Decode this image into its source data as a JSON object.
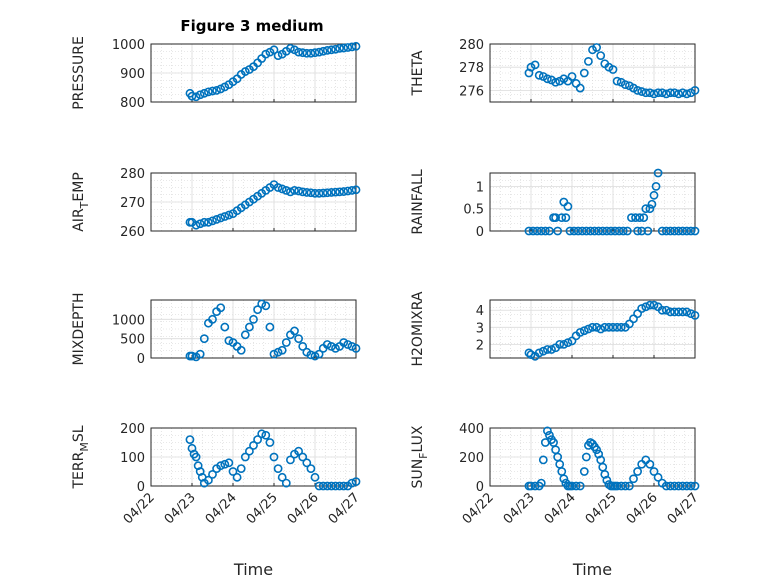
{
  "figure_title": "Figure 3 medium",
  "x_axis": {
    "label": "Time",
    "ticks": [
      "04/22",
      "04/23",
      "04/24",
      "04/25",
      "04/26",
      "04/27"
    ],
    "range_days": [
      0,
      5
    ]
  },
  "colors": {
    "marker": "#0072BD",
    "grid": "#dcdcdc",
    "axis": "#262626"
  },
  "chart_data": [
    {
      "type": "scatter",
      "id": "pressure",
      "ylabel": "PRESSURE",
      "ylim": [
        800,
        1000
      ],
      "yticks": [
        800,
        900,
        1000
      ],
      "ytick_labels": [
        "800",
        "900",
        "1000"
      ],
      "title": "Figure 3 medium",
      "grid": true,
      "x": [
        0.95,
        1.0,
        1.1,
        1.2,
        1.3,
        1.4,
        1.5,
        1.6,
        1.7,
        1.8,
        1.9,
        2.0,
        2.1,
        2.2,
        2.3,
        2.4,
        2.5,
        2.6,
        2.7,
        2.8,
        2.9,
        3.0,
        3.1,
        3.2,
        3.3,
        3.4,
        3.5,
        3.6,
        3.7,
        3.8,
        3.9,
        4.0,
        4.1,
        4.2,
        4.3,
        4.4,
        4.5,
        4.6,
        4.7,
        4.8,
        4.9,
        5.0
      ],
      "y": [
        830,
        820,
        818,
        825,
        830,
        835,
        838,
        840,
        845,
        852,
        860,
        870,
        880,
        895,
        905,
        912,
        922,
        935,
        950,
        965,
        972,
        980,
        960,
        965,
        975,
        985,
        980,
        972,
        970,
        968,
        968,
        970,
        972,
        975,
        978,
        980,
        982,
        985,
        986,
        988,
        990,
        992
      ]
    },
    {
      "type": "scatter",
      "id": "theta",
      "ylabel": "THETA",
      "ylim": [
        275,
        280
      ],
      "yticks": [
        276,
        278,
        280
      ],
      "ytick_labels": [
        "276",
        "278",
        "280"
      ],
      "grid": true,
      "x": [
        0.95,
        1.0,
        1.1,
        1.2,
        1.3,
        1.4,
        1.5,
        1.6,
        1.7,
        1.8,
        1.9,
        2.0,
        2.1,
        2.2,
        2.3,
        2.4,
        2.5,
        2.6,
        2.7,
        2.8,
        2.9,
        3.0,
        3.1,
        3.2,
        3.3,
        3.4,
        3.5,
        3.6,
        3.7,
        3.8,
        3.9,
        4.0,
        4.1,
        4.2,
        4.3,
        4.4,
        4.5,
        4.6,
        4.7,
        4.8,
        4.9,
        5.0
      ],
      "y": [
        277.5,
        278.0,
        278.2,
        277.3,
        277.2,
        277.0,
        276.9,
        276.7,
        276.8,
        277.0,
        276.8,
        277.2,
        276.6,
        276.2,
        277.5,
        278.5,
        279.5,
        279.7,
        279.0,
        278.3,
        278.0,
        277.8,
        276.8,
        276.7,
        276.5,
        276.4,
        276.2,
        276.0,
        275.9,
        275.8,
        275.8,
        275.7,
        275.8,
        275.8,
        275.7,
        275.8,
        275.8,
        275.7,
        275.8,
        275.7,
        275.8,
        276.0
      ]
    },
    {
      "type": "scatter",
      "id": "airtemp",
      "ylabel": "AIR_TEMP",
      "ylim": [
        260,
        280
      ],
      "yticks": [
        260,
        270,
        280
      ],
      "ytick_labels": [
        "260",
        "270",
        "280"
      ],
      "grid": true,
      "x": [
        0.95,
        1.0,
        1.1,
        1.2,
        1.3,
        1.4,
        1.5,
        1.6,
        1.7,
        1.8,
        1.9,
        2.0,
        2.1,
        2.2,
        2.3,
        2.4,
        2.5,
        2.6,
        2.7,
        2.8,
        2.9,
        3.0,
        3.1,
        3.2,
        3.3,
        3.4,
        3.5,
        3.6,
        3.7,
        3.8,
        3.9,
        4.0,
        4.1,
        4.2,
        4.3,
        4.4,
        4.5,
        4.6,
        4.7,
        4.8,
        4.9,
        5.0
      ],
      "y": [
        263,
        263,
        262,
        262.5,
        263,
        263,
        263.5,
        264,
        264.5,
        265,
        265.5,
        266,
        267,
        268,
        269,
        270,
        271,
        272,
        273,
        274,
        275,
        276,
        275,
        274.5,
        274,
        273.5,
        274,
        273.8,
        273.5,
        273.3,
        273.2,
        273.0,
        273.0,
        273.1,
        273.2,
        273.3,
        273.4,
        273.5,
        273.6,
        273.8,
        274.0,
        274.2
      ]
    },
    {
      "type": "scatter",
      "id": "rainfall",
      "ylabel": "RAINFALL",
      "ylim": [
        0,
        1.3
      ],
      "yticks": [
        0,
        0.5,
        1
      ],
      "ytick_labels": [
        "0",
        "0.5",
        "1"
      ],
      "grid": true,
      "x": [
        0.95,
        1.05,
        1.15,
        1.25,
        1.35,
        1.45,
        1.55,
        1.6,
        1.65,
        1.75,
        1.8,
        1.85,
        1.9,
        1.95,
        2.05,
        2.15,
        2.25,
        2.35,
        2.45,
        2.55,
        2.65,
        2.75,
        2.85,
        2.95,
        3.05,
        3.15,
        3.25,
        3.35,
        3.45,
        3.55,
        3.6,
        3.65,
        3.7,
        3.75,
        3.8,
        3.85,
        3.9,
        3.95,
        4.0,
        4.05,
        4.1,
        4.2,
        4.3,
        4.4,
        4.5,
        4.6,
        4.7,
        4.8,
        4.9,
        5.0
      ],
      "y": [
        0,
        0,
        0,
        0,
        0,
        0,
        0.3,
        0.3,
        0,
        0.3,
        0.65,
        0.3,
        0.55,
        0,
        0,
        0,
        0,
        0,
        0,
        0,
        0,
        0,
        0,
        0,
        0,
        0,
        0,
        0,
        0.3,
        0.3,
        0,
        0.3,
        0,
        0.3,
        0.5,
        0,
        0.5,
        0.6,
        0.8,
        1.0,
        1.3,
        0,
        0,
        0,
        0,
        0,
        0,
        0,
        0,
        0
      ]
    },
    {
      "type": "scatter",
      "id": "mixdepth",
      "ylabel": "MIXDEPTH",
      "ylim": [
        0,
        1500
      ],
      "yticks": [
        0,
        500,
        1000
      ],
      "ytick_labels": [
        "0",
        "500",
        "1000"
      ],
      "grid": true,
      "x": [
        0.95,
        1.0,
        1.1,
        1.2,
        1.3,
        1.4,
        1.5,
        1.6,
        1.7,
        1.8,
        1.9,
        2.0,
        2.1,
        2.2,
        2.3,
        2.4,
        2.5,
        2.6,
        2.7,
        2.8,
        2.9,
        3.0,
        3.1,
        3.2,
        3.3,
        3.4,
        3.5,
        3.6,
        3.7,
        3.8,
        3.9,
        4.0,
        4.1,
        4.2,
        4.3,
        4.4,
        4.5,
        4.6,
        4.7,
        4.8,
        4.9,
        5.0
      ],
      "y": [
        50,
        50,
        30,
        100,
        500,
        900,
        1000,
        1200,
        1300,
        800,
        450,
        400,
        300,
        200,
        600,
        800,
        1000,
        1250,
        1400,
        1350,
        800,
        100,
        150,
        200,
        400,
        600,
        700,
        500,
        300,
        150,
        80,
        50,
        100,
        250,
        350,
        300,
        250,
        300,
        400,
        350,
        300,
        250
      ]
    },
    {
      "type": "scatter",
      "id": "h2omixra",
      "ylabel": "H2OMIXRA",
      "ylim": [
        1.2,
        4.6
      ],
      "yticks": [
        2,
        3,
        4
      ],
      "ytick_labels": [
        "2",
        "3",
        "4"
      ],
      "grid": true,
      "x": [
        0.95,
        1.0,
        1.1,
        1.2,
        1.3,
        1.4,
        1.5,
        1.6,
        1.7,
        1.8,
        1.9,
        2.0,
        2.1,
        2.2,
        2.3,
        2.4,
        2.5,
        2.6,
        2.7,
        2.8,
        2.9,
        3.0,
        3.1,
        3.2,
        3.3,
        3.4,
        3.5,
        3.6,
        3.7,
        3.8,
        3.9,
        4.0,
        4.1,
        4.2,
        4.3,
        4.4,
        4.5,
        4.6,
        4.7,
        4.8,
        4.9,
        5.0
      ],
      "y": [
        1.5,
        1.4,
        1.3,
        1.5,
        1.6,
        1.7,
        1.7,
        1.8,
        2.0,
        2.0,
        2.1,
        2.2,
        2.5,
        2.7,
        2.8,
        2.9,
        3.0,
        3.0,
        2.9,
        3.0,
        3.0,
        3.0,
        3.0,
        3.0,
        3.0,
        3.2,
        3.5,
        3.8,
        4.1,
        4.2,
        4.3,
        4.3,
        4.2,
        4.0,
        4.0,
        3.9,
        3.9,
        3.9,
        3.9,
        3.9,
        3.8,
        3.7
      ]
    },
    {
      "type": "scatter",
      "id": "terrmsl",
      "ylabel": "TERR_MSL",
      "ylim": [
        0,
        200
      ],
      "yticks": [
        0,
        100,
        200
      ],
      "ytick_labels": [
        "0",
        "100",
        "200"
      ],
      "grid": true,
      "x": [
        0.95,
        1.0,
        1.05,
        1.1,
        1.15,
        1.2,
        1.25,
        1.3,
        1.4,
        1.5,
        1.6,
        1.7,
        1.8,
        1.9,
        2.0,
        2.1,
        2.2,
        2.3,
        2.4,
        2.5,
        2.6,
        2.7,
        2.8,
        2.9,
        3.0,
        3.1,
        3.2,
        3.3,
        3.4,
        3.5,
        3.6,
        3.7,
        3.8,
        3.9,
        4.0,
        4.1,
        4.2,
        4.3,
        4.4,
        4.5,
        4.6,
        4.7,
        4.8,
        4.9,
        5.0
      ],
      "y": [
        160,
        130,
        110,
        100,
        70,
        50,
        30,
        10,
        20,
        40,
        60,
        70,
        75,
        80,
        50,
        30,
        60,
        100,
        120,
        140,
        160,
        180,
        175,
        150,
        100,
        60,
        30,
        10,
        90,
        110,
        120,
        100,
        80,
        60,
        30,
        0,
        0,
        0,
        0,
        0,
        0,
        0,
        0,
        10,
        15
      ]
    },
    {
      "type": "scatter",
      "id": "sunflux",
      "ylabel": "SUN_FLUX",
      "ylim": [
        0,
        400
      ],
      "yticks": [
        0,
        200,
        400
      ],
      "ytick_labels": [
        "0",
        "200",
        "400"
      ],
      "grid": true,
      "x": [
        0.95,
        1.0,
        1.1,
        1.2,
        1.25,
        1.3,
        1.35,
        1.4,
        1.45,
        1.5,
        1.55,
        1.6,
        1.65,
        1.7,
        1.75,
        1.8,
        1.85,
        1.9,
        1.95,
        2.0,
        2.1,
        2.2,
        2.3,
        2.35,
        2.4,
        2.45,
        2.5,
        2.55,
        2.6,
        2.65,
        2.7,
        2.75,
        2.8,
        2.85,
        2.9,
        2.95,
        3.0,
        3.05,
        3.1,
        3.2,
        3.3,
        3.4,
        3.5,
        3.6,
        3.7,
        3.8,
        3.9,
        4.0,
        4.1,
        4.2,
        4.3,
        4.4,
        4.5,
        4.6,
        4.7,
        4.8,
        4.9,
        5.0
      ],
      "y": [
        0,
        0,
        0,
        0,
        20,
        180,
        300,
        380,
        350,
        320,
        300,
        250,
        200,
        150,
        100,
        50,
        20,
        0,
        0,
        0,
        0,
        0,
        100,
        200,
        280,
        300,
        290,
        270,
        250,
        220,
        180,
        130,
        80,
        40,
        10,
        0,
        0,
        0,
        0,
        0,
        0,
        0,
        50,
        100,
        150,
        180,
        150,
        100,
        60,
        20,
        0,
        0,
        0,
        0,
        0,
        0,
        0,
        0
      ]
    }
  ]
}
